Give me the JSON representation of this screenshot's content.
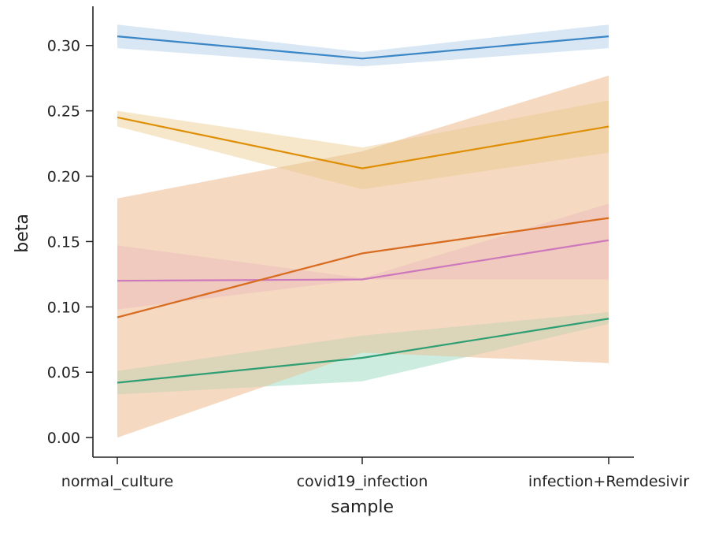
{
  "chart_data": {
    "type": "line",
    "title": "",
    "xlabel": "sample",
    "ylabel": "beta",
    "categories": [
      "normal_culture",
      "covid19_infection",
      "infection+Remdesivir"
    ],
    "ylim": [
      -0.015,
      0.33
    ],
    "yticks": [
      0.0,
      0.05,
      0.1,
      0.15,
      0.2,
      0.25,
      0.3
    ],
    "ytick_labels": [
      "0.00",
      "0.05",
      "0.10",
      "0.15",
      "0.20",
      "0.25",
      "0.30"
    ],
    "grid": false,
    "legend": "none",
    "series": [
      {
        "color": "#e6a5a0",
        "values": [
          0.092,
          0.141,
          0.168
        ],
        "ci_low": [
          0.0,
          0.065,
          0.057
        ],
        "ci_high": [
          0.183,
          0.219,
          0.277
        ],
        "band_color": "#f0c8a8"
      },
      {
        "color": "#2e9e73",
        "values": [
          0.042,
          0.061,
          0.091
        ],
        "ci_low": [
          0.033,
          0.043,
          0.087
        ],
        "ci_high": [
          0.051,
          0.078,
          0.096
        ],
        "band_color": "#8fd4b8"
      },
      {
        "color": "#cc78bc",
        "values": [
          0.12,
          0.121,
          0.151
        ],
        "ci_low": [
          0.098,
          0.121,
          0.121
        ],
        "ci_high": [
          0.147,
          0.122,
          0.179
        ],
        "band_color": "#e3a9c9"
      },
      {
        "color": "#d86c1f",
        "values": [
          0.092,
          0.141,
          0.168
        ],
        "ci_low": [
          0.0,
          0.065,
          0.057
        ],
        "ci_high": [
          0.183,
          0.219,
          0.277
        ],
        "band_color": "#f2caa6"
      },
      {
        "color": "#de8f05",
        "values": [
          0.245,
          0.206,
          0.238
        ],
        "ci_low": [
          0.238,
          0.19,
          0.218
        ],
        "ci_high": [
          0.25,
          0.222,
          0.258
        ],
        "band_color": "#ebc98a"
      },
      {
        "color": "#3a86c6",
        "values": [
          0.307,
          0.29,
          0.307
        ],
        "ci_low": [
          0.298,
          0.284,
          0.298
        ],
        "ci_high": [
          0.316,
          0.295,
          0.316
        ],
        "band_color": "#a9c9e4"
      }
    ]
  }
}
